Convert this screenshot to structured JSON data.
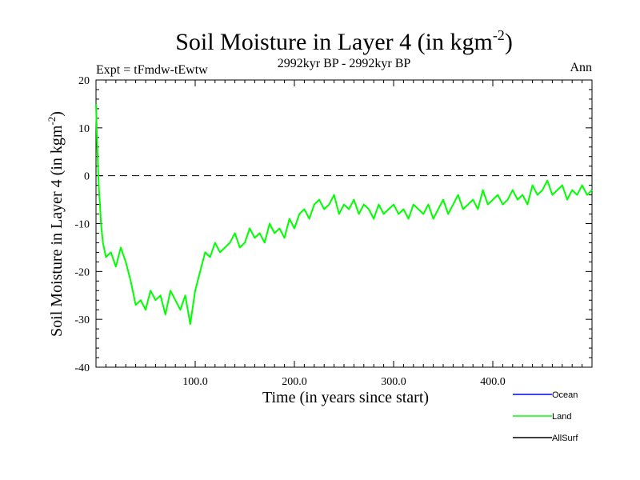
{
  "chart_data": {
    "type": "line",
    "title": "Soil Moisture in Layer 4 (in kgm",
    "title_sup": "-2",
    "title_close": ")",
    "subtitle": "2992kyr BP - 2992kyr BP",
    "expt_label": "Expt = tFmdw-tEwtw",
    "period_label": "Ann",
    "xlabel": "Time (in years since start)",
    "ylabel": "Soil Moisture in Layer 4 (in kgm",
    "ylabel_sup": "-2",
    "ylabel_close": ")",
    "xlim": [
      0,
      500
    ],
    "ylim": [
      -40,
      20
    ],
    "x_ticks": [
      100,
      200,
      300,
      400
    ],
    "x_tick_labels": [
      "100.0",
      "200.0",
      "300.0",
      "400.0"
    ],
    "y_ticks": [
      -40,
      -30,
      -20,
      -10,
      0,
      10,
      20
    ],
    "y_tick_labels": [
      "-40",
      "-30",
      "-20",
      "-10",
      "0",
      "10",
      "20"
    ],
    "reference_line": 0,
    "legend": [
      {
        "name": "Ocean",
        "color": "#0000ff"
      },
      {
        "name": "Land",
        "color": "#00ff00"
      },
      {
        "name": "AllSurf",
        "color": "#000000"
      }
    ],
    "series": [
      {
        "name": "Land",
        "color": "#00ff00",
        "x": [
          0,
          1,
          2,
          3,
          4,
          5,
          7,
          10,
          15,
          20,
          25,
          30,
          35,
          40,
          45,
          50,
          55,
          60,
          65,
          70,
          75,
          80,
          85,
          90,
          95,
          100,
          105,
          110,
          115,
          120,
          125,
          130,
          135,
          140,
          145,
          150,
          155,
          160,
          165,
          170,
          175,
          180,
          185,
          190,
          195,
          200,
          205,
          210,
          215,
          220,
          225,
          230,
          235,
          240,
          245,
          250,
          255,
          260,
          265,
          270,
          275,
          280,
          285,
          290,
          295,
          300,
          305,
          310,
          315,
          320,
          325,
          330,
          335,
          340,
          345,
          350,
          355,
          360,
          365,
          370,
          375,
          380,
          385,
          390,
          395,
          400,
          405,
          410,
          415,
          420,
          425,
          430,
          435,
          440,
          445,
          450,
          455,
          460,
          465,
          470,
          475,
          480,
          485,
          490,
          495,
          500
        ],
        "values": [
          15,
          8,
          2,
          -3,
          -6,
          -10,
          -14,
          -17,
          -16,
          -19,
          -15,
          -18,
          -22,
          -27,
          -26,
          -28,
          -24,
          -26,
          -25,
          -29,
          -24,
          -26,
          -28,
          -25,
          -31,
          -24,
          -20,
          -16,
          -17,
          -14,
          -16,
          -15,
          -14,
          -12,
          -15,
          -14,
          -11,
          -13,
          -12,
          -14,
          -10,
          -12,
          -11,
          -13,
          -9,
          -11,
          -8,
          -7,
          -9,
          -6,
          -5,
          -7,
          -6,
          -4,
          -8,
          -6,
          -7,
          -5,
          -8,
          -6,
          -7,
          -9,
          -6,
          -8,
          -7,
          -6,
          -8,
          -7,
          -9,
          -6,
          -7,
          -8,
          -6,
          -9,
          -7,
          -5,
          -8,
          -6,
          -4,
          -7,
          -6,
          -5,
          -7,
          -3,
          -6,
          -5,
          -4,
          -6,
          -5,
          -3,
          -5,
          -4,
          -6,
          -2,
          -4,
          -3,
          -1,
          -4,
          -3,
          -2,
          -5,
          -3,
          -4,
          -2,
          -4,
          -3
        ]
      }
    ]
  }
}
